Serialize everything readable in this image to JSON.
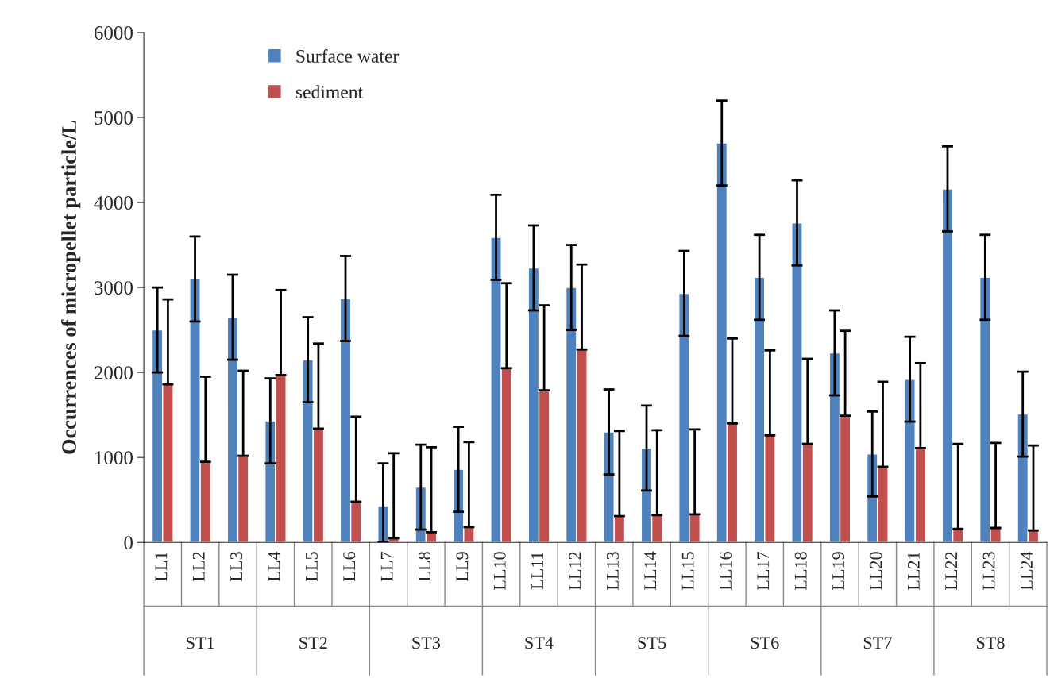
{
  "chart_data": {
    "type": "bar",
    "ylabel": "Occurrences of micropellet particle/L",
    "categories": [
      "LL1",
      "LL2",
      "LL3",
      "LL4",
      "LL5",
      "LL6",
      "LL7",
      "LL8",
      "LL9",
      "LL10",
      "LL11",
      "LL12",
      "LL13",
      "LL14",
      "LL15",
      "LL16",
      "LL17",
      "LL18",
      "LL19",
      "LL20",
      "LL21",
      "LL22",
      "LL23",
      "LL24"
    ],
    "series": [
      {
        "name": "Surface water",
        "color": "#4f81bd",
        "values": [
          2500,
          3100,
          2650,
          1430,
          2150,
          2870,
          430,
          650,
          860,
          3590,
          3230,
          3000,
          1300,
          1110,
          2930,
          4700,
          3120,
          3760,
          2230,
          1040,
          1920,
          4160,
          3120,
          1510
        ],
        "errors": [
          500,
          500,
          500,
          500,
          500,
          500,
          [
            0,
            930
          ],
          500,
          500,
          500,
          500,
          500,
          500,
          500,
          500,
          500,
          500,
          500,
          500,
          500,
          500,
          500,
          500,
          500
        ]
      },
      {
        "name": "sediment",
        "color": "#c0504d",
        "values": [
          1860,
          950,
          1020,
          1970,
          1340,
          480,
          50,
          120,
          180,
          2050,
          1790,
          2270,
          310,
          320,
          330,
          1400,
          1260,
          1160,
          1490,
          890,
          1110,
          160,
          170,
          140
        ],
        "errors": [
          [
            1860,
            2860
          ],
          [
            950,
            1950
          ],
          [
            1020,
            2020
          ],
          [
            1970,
            2970
          ],
          [
            1340,
            2340
          ],
          [
            480,
            1480
          ],
          [
            50,
            1050
          ],
          [
            120,
            1120
          ],
          [
            180,
            1180
          ],
          [
            2050,
            3050
          ],
          [
            1790,
            2790
          ],
          [
            2270,
            3270
          ],
          [
            310,
            1310
          ],
          [
            320,
            1320
          ],
          [
            330,
            1330
          ],
          [
            1400,
            2400
          ],
          [
            1260,
            2260
          ],
          [
            1160,
            2160
          ],
          [
            1490,
            2490
          ],
          [
            890,
            1890
          ],
          [
            1110,
            2110
          ],
          [
            160,
            1160
          ],
          [
            170,
            1170
          ],
          [
            140,
            1140
          ]
        ]
      }
    ],
    "annotations": [
      "ST1",
      "ST2",
      "ST3",
      "ST4",
      "ST5",
      "ST6",
      "ST7",
      "ST8"
    ],
    "ylim": [
      0,
      6000
    ],
    "yticks": [
      0,
      1000,
      2000,
      3000,
      4000,
      5000,
      6000
    ],
    "grid": false,
    "legend": "top left"
  }
}
